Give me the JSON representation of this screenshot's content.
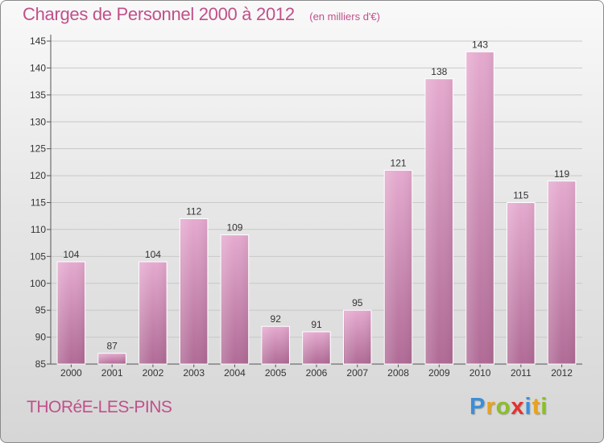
{
  "title": "Charges de Personnel 2000 à 2012",
  "subtitle": "(en milliers d'€)",
  "commune": "THORéE-LES-PINS",
  "brand": {
    "letters": [
      "P",
      "r",
      "o",
      "x",
      "i",
      "t",
      "i"
    ],
    "colors": [
      "#3a8fd8",
      "#e9a21c",
      "#8cbf26",
      "#e2332f",
      "#3a8fd8",
      "#e9a21c",
      "#8cbf26"
    ]
  },
  "colors": {
    "bar": "#d78ab4",
    "bar_light": "#e5aacf",
    "bar_dark": "#b06b96",
    "text": "#c0508a"
  },
  "chart_data": {
    "type": "bar",
    "categories": [
      "2000",
      "2001",
      "2002",
      "2003",
      "2004",
      "2005",
      "2006",
      "2007",
      "2008",
      "2009",
      "2010",
      "2011",
      "2012"
    ],
    "values": [
      104,
      87,
      104,
      112,
      109,
      92,
      91,
      95,
      121,
      138,
      143,
      115,
      119
    ],
    "value_labels": [
      "104",
      "87",
      "104",
      "112",
      "109",
      "92",
      "91",
      "95",
      "121",
      "138",
      "143",
      "115",
      "119"
    ],
    "ylim": [
      85,
      145
    ],
    "yticks": [
      85,
      90,
      95,
      100,
      105,
      110,
      115,
      120,
      125,
      130,
      135,
      140,
      145
    ],
    "title": "Charges de Personnel 2000 à 2012",
    "xlabel": "",
    "ylabel": "",
    "grid": true
  }
}
